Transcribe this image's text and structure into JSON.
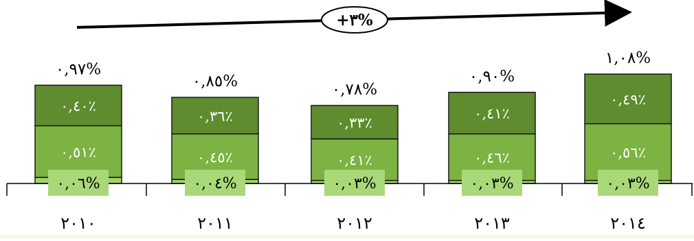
{
  "chart_data": {
    "type": "bar",
    "stacked": true,
    "categories": [
      "٢٠١٠",
      "٢٠١١",
      "٢٠١٢",
      "٢٠١٣",
      "٢٠١٤"
    ],
    "series": [
      {
        "values": [
          0.06,
          0.04,
          0.03,
          0.03,
          0.03
        ],
        "labels": [
          "٠,٠٦%",
          "٠,٠٤%",
          "٠,٠٣%",
          "٠,٠٣%",
          "٠,٠٣%"
        ],
        "color": "#9fd26a"
      },
      {
        "values": [
          0.51,
          0.45,
          0.41,
          0.46,
          0.56
        ],
        "labels": [
          "٠,٥١٪",
          "٠,٤٥٪",
          "٠,٤١٪",
          "٠,٤٦٪",
          "٠,٥٦٪"
        ],
        "color": "#7cb342"
      },
      {
        "values": [
          0.4,
          0.36,
          0.33,
          0.41,
          0.49
        ],
        "labels": [
          "٠,٤٠٪",
          "٠,٣٦٪",
          "٠,٣٣٪",
          "٠,٤١٪",
          "٠,٤٩٪"
        ],
        "color": "#5e8c2e"
      }
    ],
    "totals": [
      0.97,
      0.85,
      0.78,
      0.9,
      1.08
    ],
    "total_labels": [
      "٠,٩٧%",
      "٠,٨٥%",
      "٠,٧٨%",
      "٠,٩٠%",
      "١,٠٨%"
    ],
    "trend_annotation": "+٣%",
    "ylim": [
      0,
      1.2
    ],
    "grid": false,
    "legend": "none",
    "colors": {
      "bar_border": "#1a1a1a",
      "axis": "#000000",
      "text": "#000000",
      "segment_text": "#ffffff",
      "base_label_bg": "#a9d879"
    }
  }
}
